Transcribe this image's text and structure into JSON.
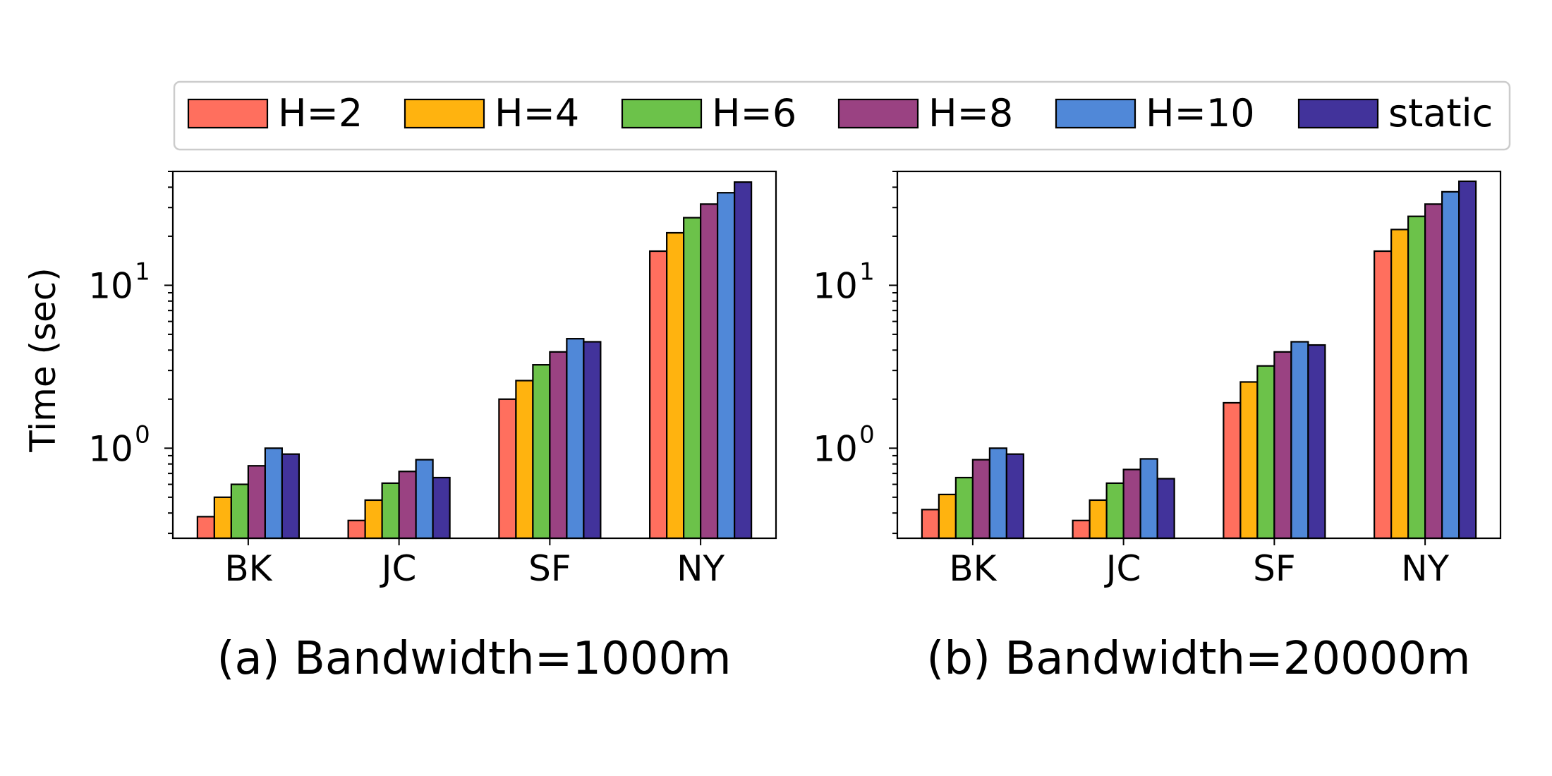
{
  "chart_data": {
    "type": "bar",
    "scale": "log",
    "ylabel": "Time (sec)",
    "ylim": [
      0.28,
      50
    ],
    "yticks": [
      {
        "value": 1,
        "base": "10",
        "exp": "0"
      },
      {
        "value": 10,
        "base": "10",
        "exp": "1"
      }
    ],
    "categories": [
      "BK",
      "JC",
      "SF",
      "NY"
    ],
    "legend": {
      "position": "top",
      "entries": [
        {
          "name": "H=2",
          "color": "#FF6F5E"
        },
        {
          "name": "H=4",
          "color": "#FFB30F"
        },
        {
          "name": "H=6",
          "color": "#6CC24A"
        },
        {
          "name": "H=8",
          "color": "#9A4282"
        },
        {
          "name": "H=10",
          "color": "#5088D8"
        },
        {
          "name": "static",
          "color": "#42339B"
        }
      ]
    },
    "panels": [
      {
        "title": "(a) Bandwidth=1000m",
        "series": [
          {
            "name": "H=2",
            "values": [
              0.38,
              0.36,
              2.0,
              16.2
            ]
          },
          {
            "name": "H=4",
            "values": [
              0.5,
              0.48,
              2.6,
              21.0
            ]
          },
          {
            "name": "H=6",
            "values": [
              0.6,
              0.61,
              3.25,
              26.0
            ]
          },
          {
            "name": "H=8",
            "values": [
              0.78,
              0.72,
              3.9,
              31.5
            ]
          },
          {
            "name": "H=10",
            "values": [
              1.0,
              0.85,
              4.7,
              37.0
            ]
          },
          {
            "name": "static",
            "values": [
              0.92,
              0.66,
              4.5,
              43.0
            ]
          }
        ]
      },
      {
        "title": "(b) Bandwidth=20000m",
        "series": [
          {
            "name": "H=2",
            "values": [
              0.42,
              0.36,
              1.9,
              16.2
            ]
          },
          {
            "name": "H=4",
            "values": [
              0.52,
              0.48,
              2.55,
              22.0
            ]
          },
          {
            "name": "H=6",
            "values": [
              0.66,
              0.61,
              3.2,
              26.5
            ]
          },
          {
            "name": "H=8",
            "values": [
              0.85,
              0.74,
              3.9,
              31.5
            ]
          },
          {
            "name": "H=10",
            "values": [
              1.0,
              0.86,
              4.5,
              37.5
            ]
          },
          {
            "name": "static",
            "values": [
              0.92,
              0.65,
              4.3,
              43.5
            ]
          }
        ]
      }
    ]
  }
}
